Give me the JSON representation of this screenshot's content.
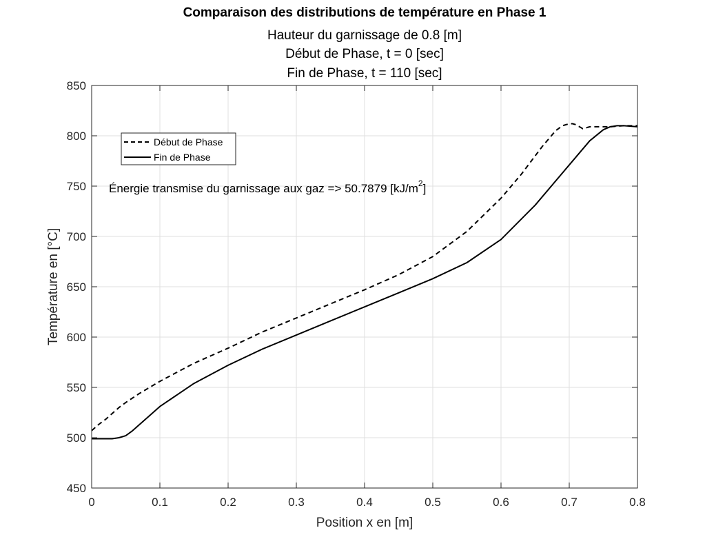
{
  "chart_data": {
    "type": "line",
    "title": "Comparaison des distributions de température en Phase 1",
    "subtitle_lines": [
      "Hauteur du garnissage de 0.8 [m]",
      "Début de Phase, t = 0 [sec]",
      "Fin de Phase, t = 110 [sec]"
    ],
    "xlabel": "Position x en [m]",
    "ylabel": "Température en [°C]",
    "xlim": [
      0,
      0.8
    ],
    "ylim": [
      450,
      850
    ],
    "xticks": [
      0,
      0.1,
      0.2,
      0.3,
      0.4,
      0.5,
      0.6,
      0.7,
      0.8
    ],
    "xtick_labels": [
      "0",
      "0.1",
      "0.2",
      "0.3",
      "0.4",
      "0.5",
      "0.6",
      "0.7",
      "0.8"
    ],
    "yticks": [
      450,
      500,
      550,
      600,
      650,
      700,
      750,
      800,
      850
    ],
    "ytick_labels": [
      "450",
      "500",
      "550",
      "600",
      "650",
      "700",
      "750",
      "800",
      "850"
    ],
    "grid": true,
    "legend_position": "top-left",
    "annotation": {
      "text": "Énergie transmise du garnissage aux gaz => 50.7879 [kJ/m",
      "superscript": "2",
      "suffix": "]",
      "x": 0.026,
      "y": 747
    },
    "series": [
      {
        "name": "Début de Phase",
        "style": "dashed",
        "color": "#000000",
        "x": [
          0,
          0.01,
          0.02,
          0.03,
          0.04,
          0.05,
          0.07,
          0.1,
          0.15,
          0.2,
          0.25,
          0.3,
          0.35,
          0.4,
          0.45,
          0.5,
          0.55,
          0.6,
          0.63,
          0.66,
          0.68,
          0.69,
          0.7,
          0.705,
          0.71,
          0.72,
          0.73,
          0.74,
          0.76,
          0.78,
          0.8
        ],
        "y": [
          507,
          513,
          518,
          524,
          530,
          535,
          544,
          556,
          574,
          589,
          605,
          619,
          633,
          647,
          662,
          680,
          705,
          738,
          762,
          789,
          805,
          810,
          812,
          812,
          811,
          807,
          809,
          809,
          809,
          810,
          810
        ]
      },
      {
        "name": "Fin de Phase",
        "style": "solid",
        "color": "#000000",
        "x": [
          0,
          0.01,
          0.02,
          0.03,
          0.04,
          0.05,
          0.06,
          0.07,
          0.08,
          0.1,
          0.15,
          0.2,
          0.25,
          0.3,
          0.35,
          0.4,
          0.45,
          0.5,
          0.55,
          0.6,
          0.65,
          0.7,
          0.73,
          0.75,
          0.76,
          0.77,
          0.78,
          0.8
        ],
        "y": [
          499,
          499,
          499,
          499,
          500,
          502,
          507,
          513,
          519,
          531,
          554,
          572,
          588,
          602,
          616,
          630,
          644,
          658,
          674,
          697,
          731,
          771,
          795,
          806,
          809,
          810,
          810,
          809
        ]
      }
    ]
  }
}
